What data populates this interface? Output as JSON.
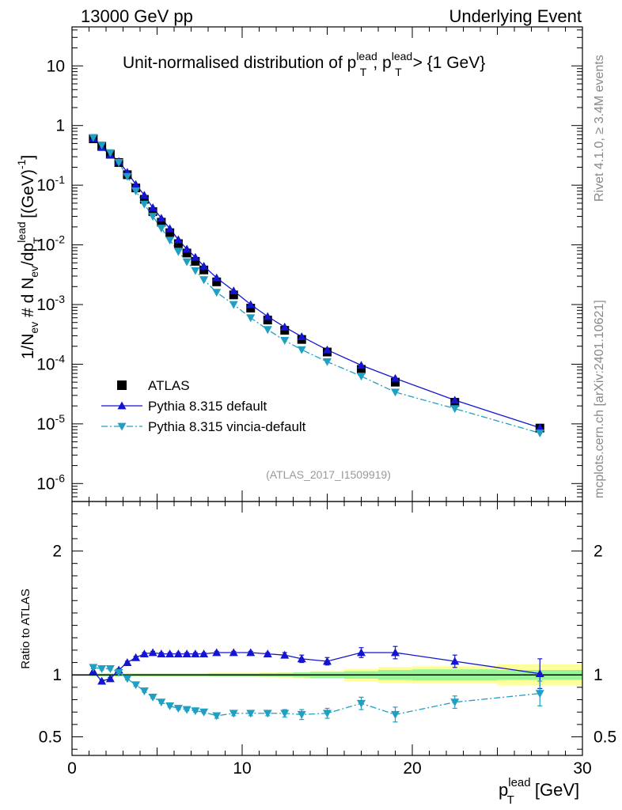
{
  "header": {
    "left": "13000 GeV pp",
    "right": "Underlying Event"
  },
  "main_plot": {
    "title_prefix": "Unit-normalised distribution of p",
    "title_sup": "lead",
    "title_sub": "T",
    "title_mid": ", p",
    "title_suffix": " > {1 GeV}",
    "ylabel": "1/N_ev # d N_ev/dp_T^lead [(GeV)^-1]",
    "analysis_id": "(ATLAS_2017_I1509919)"
  },
  "side_labels": {
    "rivet": "Rivet 4.1.0, ≥ 3.4M events",
    "mcplots": "mcplots.cern.ch [arXiv:2401.10621]"
  },
  "ratio_plot": {
    "ylabel": "Ratio to ATLAS"
  },
  "xaxis": {
    "label": "p_T^lead [GeV]"
  },
  "legend": {
    "atlas": "ATLAS",
    "default": "Pythia 8.315 default",
    "vincia": "Pythia 8.315 vincia-default"
  },
  "colors": {
    "default": "#1414d2",
    "vincia": "#1ea0c3",
    "band_inner": "#98f598",
    "band_outer": "#ffff99"
  },
  "chart_data": {
    "type": "scatter",
    "xlim": [
      0,
      30
    ],
    "ylim": [
      5e-07,
      45
    ],
    "yscale": "log",
    "ratio_ylim": [
      0.35,
      2.4
    ],
    "ratio_yticks": [
      0.5,
      1,
      2
    ],
    "xticks": [
      0,
      10,
      20,
      30
    ],
    "ytick_labels": [
      "10^-6",
      "10^-5",
      "10^-4",
      "10^-3",
      "10^-2",
      "10^-1",
      "1",
      "10"
    ],
    "x": [
      1.25,
      1.75,
      2.25,
      2.75,
      3.25,
      3.75,
      4.25,
      4.75,
      5.25,
      5.75,
      6.25,
      6.75,
      7.25,
      7.75,
      8.5,
      9.5,
      10.5,
      11.5,
      12.5,
      13.5,
      15,
      17,
      19,
      22.5,
      27.5
    ],
    "x_edges": [
      1,
      1.5,
      2,
      2.5,
      3,
      3.5,
      4,
      4.5,
      5,
      5.5,
      6,
      6.5,
      7,
      7.5,
      8,
      9,
      10,
      11,
      12,
      13,
      14,
      16,
      18,
      20,
      25,
      30
    ],
    "series": [
      {
        "name": "ATLAS",
        "values": [
          0.6,
          0.45,
          0.33,
          0.24,
          0.15,
          0.09,
          0.058,
          0.036,
          0.024,
          0.016,
          0.0105,
          0.0073,
          0.0053,
          0.0038,
          0.0024,
          0.00145,
          0.00087,
          0.00055,
          0.00037,
          0.00026,
          0.00016,
          8.2e-05,
          5e-05,
          2.3e-05,
          8.5e-06
        ]
      },
      {
        "name": "Pythia 8.315 default",
        "values": [
          0.61,
          0.43,
          0.32,
          0.25,
          0.165,
          0.103,
          0.068,
          0.042,
          0.028,
          0.0187,
          0.0122,
          0.0085,
          0.0062,
          0.0044,
          0.0028,
          0.0017,
          0.001,
          0.00063,
          0.00042,
          0.00029,
          0.000174,
          9.6e-05,
          5.8e-05,
          2.5e-05,
          8.6e-06
        ],
        "ratio": [
          1.03,
          0.95,
          0.97,
          1.04,
          1.1,
          1.14,
          1.17,
          1.18,
          1.17,
          1.17,
          1.17,
          1.17,
          1.17,
          1.17,
          1.18,
          1.18,
          1.18,
          1.17,
          1.16,
          1.13,
          1.11,
          1.18,
          1.18,
          1.11,
          1.01
        ],
        "ratio_err": [
          0.02,
          0.01,
          0.01,
          0.01,
          0.01,
          0.01,
          0.01,
          0.01,
          0.01,
          0.01,
          0.01,
          0.01,
          0.01,
          0.01,
          0.01,
          0.01,
          0.01,
          0.01,
          0.02,
          0.03,
          0.03,
          0.04,
          0.05,
          0.05,
          0.12
        ]
      },
      {
        "name": "Pythia 8.315 vincia-default",
        "values": [
          0.63,
          0.47,
          0.35,
          0.24,
          0.14,
          0.08,
          0.048,
          0.03,
          0.019,
          0.012,
          0.0077,
          0.0052,
          0.0037,
          0.0026,
          0.0016,
          0.001,
          0.0006,
          0.00038,
          0.00025,
          0.000175,
          0.00011,
          6.3e-05,
          3.4e-05,
          1.8e-05,
          7e-06
        ],
        "ratio": [
          1.06,
          1.05,
          1.05,
          1.02,
          0.97,
          0.92,
          0.87,
          0.82,
          0.78,
          0.75,
          0.73,
          0.72,
          0.71,
          0.7,
          0.67,
          0.69,
          0.69,
          0.69,
          0.69,
          0.68,
          0.69,
          0.77,
          0.68,
          0.78,
          0.85
        ],
        "ratio_err": [
          0.01,
          0.01,
          0.01,
          0.01,
          0.01,
          0.01,
          0.01,
          0.01,
          0.01,
          0.01,
          0.01,
          0.01,
          0.01,
          0.01,
          0.02,
          0.02,
          0.02,
          0.02,
          0.03,
          0.04,
          0.04,
          0.05,
          0.06,
          0.05,
          0.1
        ]
      }
    ],
    "ratio_band_inner": [
      0.01,
      0.01,
      0.01,
      0.01,
      0.01,
      0.01,
      0.01,
      0.01,
      0.01,
      0.01,
      0.01,
      0.01,
      0.01,
      0.01,
      0.012,
      0.012,
      0.012,
      0.014,
      0.016,
      0.02,
      0.025,
      0.03,
      0.04,
      0.045,
      0.04
    ],
    "ratio_band_outer": [
      0.015,
      0.015,
      0.015,
      0.015,
      0.015,
      0.015,
      0.015,
      0.015,
      0.015,
      0.015,
      0.015,
      0.015,
      0.015,
      0.015,
      0.018,
      0.018,
      0.018,
      0.02,
      0.022,
      0.025,
      0.03,
      0.05,
      0.065,
      0.07,
      0.085
    ]
  }
}
